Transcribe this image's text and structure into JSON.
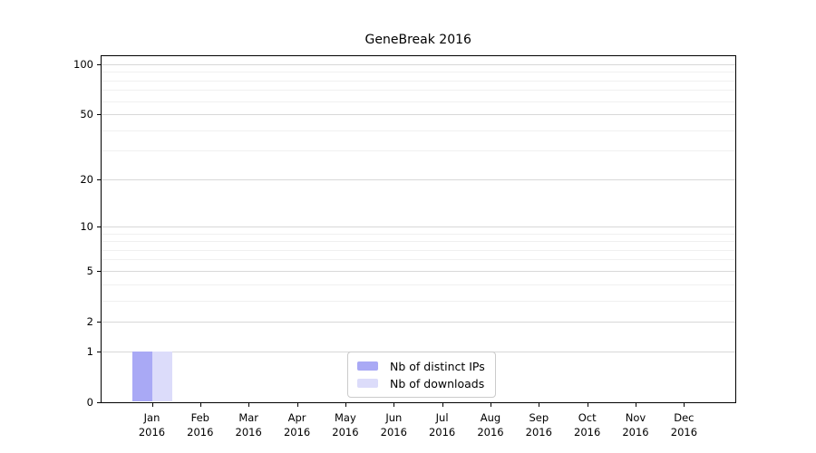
{
  "chart_data": {
    "type": "bar",
    "title": "GeneBreak 2016",
    "categories": [
      "Jan 2016",
      "Feb 2016",
      "Mar 2016",
      "Apr 2016",
      "May 2016",
      "Jun 2016",
      "Jul 2016",
      "Aug 2016",
      "Sep 2016",
      "Oct 2016",
      "Nov 2016",
      "Dec 2016"
    ],
    "series": [
      {
        "name": "Nb of distinct IPs",
        "color": "#a9a9f5",
        "values": [
          1,
          0,
          0,
          0,
          0,
          0,
          0,
          0,
          0,
          0,
          0,
          0
        ]
      },
      {
        "name": "Nb of downloads",
        "color": "#dcdcfa",
        "values": [
          1,
          0,
          0,
          0,
          0,
          0,
          0,
          0,
          0,
          0,
          0,
          0
        ]
      }
    ],
    "xlabel": "",
    "ylabel": "",
    "y_scale": "log10(1+v)",
    "ylim": [
      0,
      112
    ],
    "y_ticks": [
      100,
      50,
      20,
      10,
      5,
      2,
      1,
      0
    ],
    "y_minor_gridlines": [
      3,
      4,
      6,
      7,
      8,
      9,
      30,
      40,
      60,
      70,
      80,
      90
    ],
    "grid": "horizontal",
    "legend_position": "inside-bottom-center"
  },
  "colors": {
    "background": "#ffffff",
    "axis": "#000000",
    "major_grid": "#d8d8d8",
    "minor_grid": "#f0f0f0",
    "legend_border": "#cbcbcb"
  }
}
